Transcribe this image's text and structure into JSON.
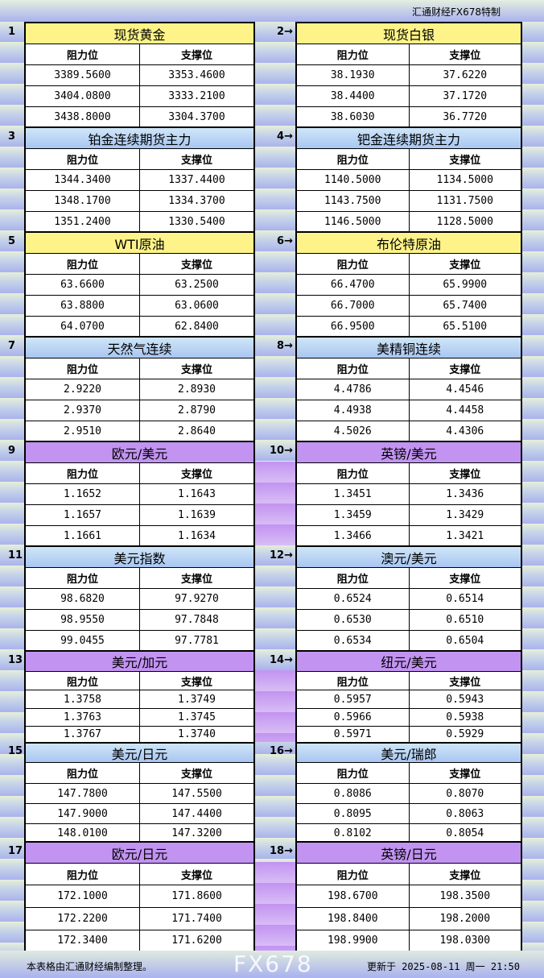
{
  "brand": "汇通财经FX678特制",
  "col_headers": {
    "resistance": "阻力位",
    "support": "支撑位"
  },
  "colors": {
    "yellow": "#fdf389",
    "blue": "#b9d5f4",
    "purple": "#c293f1"
  },
  "sections": [
    {
      "num": "1",
      "title": "现货黄金",
      "color": "yellow",
      "rows": [
        [
          "3389.5600",
          "3353.4600"
        ],
        [
          "3404.0800",
          "3333.2100"
        ],
        [
          "3438.8000",
          "3304.3700"
        ]
      ]
    },
    {
      "num": "2→",
      "title": "现货白银",
      "color": "yellow",
      "rows": [
        [
          "38.1930",
          "37.6220"
        ],
        [
          "38.4400",
          "37.1720"
        ],
        [
          "38.6030",
          "36.7720"
        ]
      ]
    },
    {
      "num": "3",
      "title": "铂金连续期货主力",
      "color": "blue",
      "rows": [
        [
          "1344.3400",
          "1337.4400"
        ],
        [
          "1348.1700",
          "1334.3700"
        ],
        [
          "1351.2400",
          "1330.5400"
        ]
      ]
    },
    {
      "num": "4→",
      "title": "钯金连续期货主力",
      "color": "blue",
      "rows": [
        [
          "1140.5000",
          "1134.5000"
        ],
        [
          "1143.7500",
          "1131.7500"
        ],
        [
          "1146.5000",
          "1128.5000"
        ]
      ]
    },
    {
      "num": "5",
      "title": "WTI原油",
      "color": "yellow",
      "rows": [
        [
          "63.6600",
          "63.2500"
        ],
        [
          "63.8800",
          "63.0600"
        ],
        [
          "64.0700",
          "62.8400"
        ]
      ]
    },
    {
      "num": "6→",
      "title": "布伦特原油",
      "color": "yellow",
      "rows": [
        [
          "66.4700",
          "65.9900"
        ],
        [
          "66.7000",
          "65.7400"
        ],
        [
          "66.9500",
          "65.5100"
        ]
      ]
    },
    {
      "num": "7",
      "title": "天然气连续",
      "color": "blue",
      "rows": [
        [
          "2.9220",
          "2.8930"
        ],
        [
          "2.9370",
          "2.8790"
        ],
        [
          "2.9510",
          "2.8640"
        ]
      ]
    },
    {
      "num": "8→",
      "title": "美精铜连续",
      "color": "blue",
      "rows": [
        [
          "4.4786",
          "4.4546"
        ],
        [
          "4.4938",
          "4.4458"
        ],
        [
          "4.5026",
          "4.4306"
        ]
      ]
    },
    {
      "num": "9",
      "title": "欧元/美元",
      "color": "purple",
      "rows": [
        [
          "1.1652",
          "1.1643"
        ],
        [
          "1.1657",
          "1.1639"
        ],
        [
          "1.1661",
          "1.1634"
        ]
      ]
    },
    {
      "num": "10→",
      "title": "英镑/美元",
      "color": "purple",
      "rows": [
        [
          "1.3451",
          "1.3436"
        ],
        [
          "1.3459",
          "1.3429"
        ],
        [
          "1.3466",
          "1.3421"
        ]
      ]
    },
    {
      "num": "11",
      "title": "美元指数",
      "color": "blue",
      "rows": [
        [
          "98.6820",
          "97.9270"
        ],
        [
          "98.9550",
          "97.7848"
        ],
        [
          "99.0455",
          "97.7781"
        ]
      ]
    },
    {
      "num": "12→",
      "title": "澳元/美元",
      "color": "blue",
      "rows": [
        [
          "0.6524",
          "0.6514"
        ],
        [
          "0.6530",
          "0.6510"
        ],
        [
          "0.6534",
          "0.6504"
        ]
      ]
    },
    {
      "num": "13",
      "title": "美元/加元",
      "color": "purple",
      "rows": [
        [
          "1.3758",
          "1.3749"
        ],
        [
          "1.3763",
          "1.3745"
        ],
        [
          "1.3767",
          "1.3740"
        ]
      ]
    },
    {
      "num": "14→",
      "title": "纽元/美元",
      "color": "purple",
      "rows": [
        [
          "0.5957",
          "0.5943"
        ],
        [
          "0.5966",
          "0.5938"
        ],
        [
          "0.5971",
          "0.5929"
        ]
      ]
    },
    {
      "num": "15",
      "title": "美元/日元",
      "color": "blue",
      "rows": [
        [
          "147.7800",
          "147.5500"
        ],
        [
          "147.9000",
          "147.4400"
        ],
        [
          "148.0100",
          "147.3200"
        ]
      ]
    },
    {
      "num": "16→",
      "title": "美元/瑞郎",
      "color": "blue",
      "rows": [
        [
          "0.8086",
          "0.8070"
        ],
        [
          "0.8095",
          "0.8063"
        ],
        [
          "0.8102",
          "0.8054"
        ]
      ]
    },
    {
      "num": "17",
      "title": "欧元/日元",
      "color": "purple",
      "rows": [
        [
          "172.1000",
          "171.8600"
        ],
        [
          "172.2200",
          "171.7400"
        ],
        [
          "172.3400",
          "171.6200"
        ]
      ]
    },
    {
      "num": "18→",
      "title": "英镑/日元",
      "color": "purple",
      "rows": [
        [
          "198.6700",
          "198.3500"
        ],
        [
          "198.8400",
          "198.2000"
        ],
        [
          "198.9900",
          "198.0300"
        ]
      ]
    }
  ],
  "footer": {
    "note": "本表格由汇通财经编制整理。",
    "updated": "更新于 2025-08-11 周一 21:50"
  },
  "watermark": "FX678"
}
